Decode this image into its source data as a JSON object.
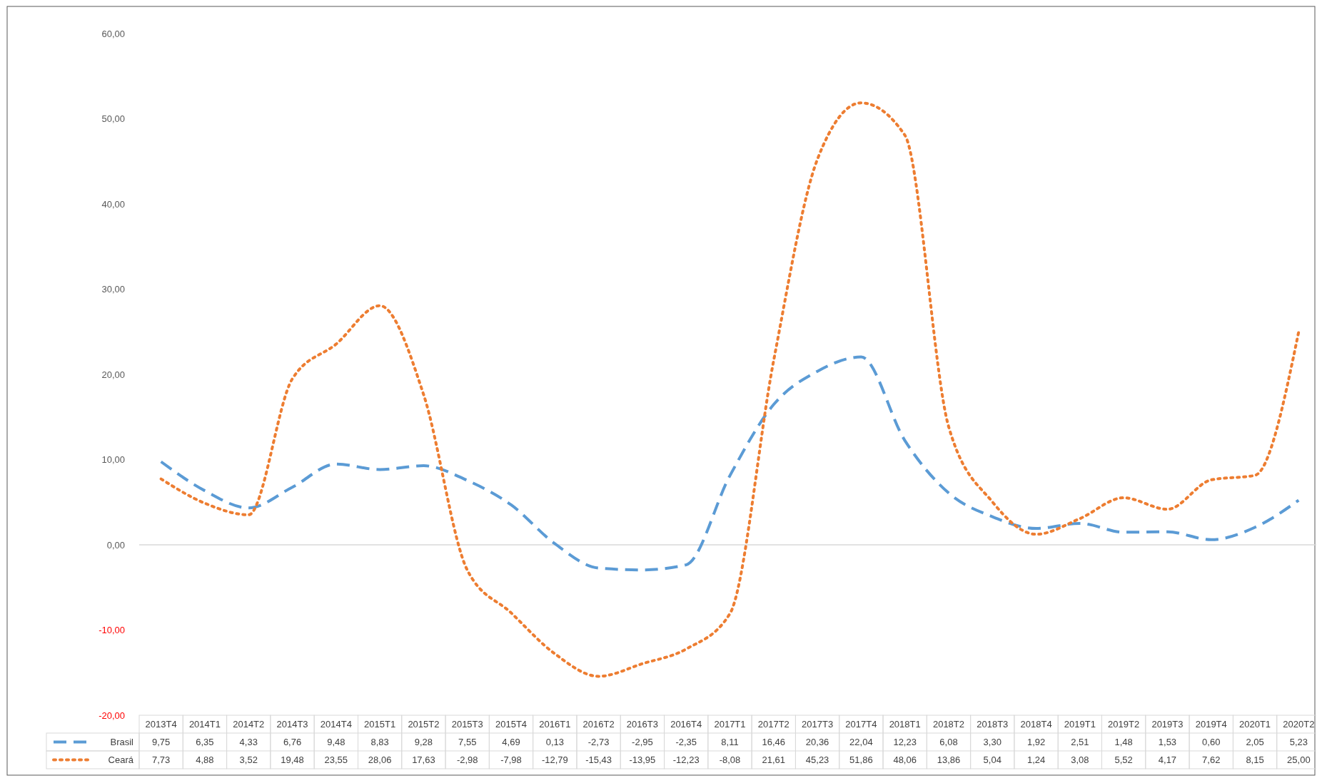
{
  "chart_data": {
    "type": "line",
    "categories": [
      "2013T4",
      "2014T1",
      "2014T2",
      "2014T3",
      "2014T4",
      "2015T1",
      "2015T2",
      "2015T3",
      "2015T4",
      "2016T1",
      "2016T2",
      "2016T3",
      "2016T4",
      "2017T1",
      "2017T2",
      "2017T3",
      "2017T4",
      "2018T1",
      "2018T2",
      "2018T3",
      "2018T4",
      "2019T1",
      "2019T2",
      "2019T3",
      "2019T4",
      "2020T1",
      "2020T2"
    ],
    "series": [
      {
        "name": "Brasil",
        "color": "#5b9bd5",
        "line_style": "dashed",
        "values": [
          9.75,
          6.35,
          4.33,
          6.76,
          9.48,
          8.83,
          9.28,
          7.55,
          4.69,
          0.13,
          -2.73,
          -2.95,
          -2.35,
          8.11,
          16.46,
          20.36,
          22.04,
          12.23,
          6.08,
          3.3,
          1.92,
          2.51,
          1.48,
          1.53,
          0.6,
          2.05,
          5.23
        ],
        "value_labels": [
          "9,75",
          "6,35",
          "4,33",
          "6,76",
          "9,48",
          "8,83",
          "9,28",
          "7,55",
          "4,69",
          "0,13",
          "-2,73",
          "-2,95",
          "-2,35",
          "8,11",
          "16,46",
          "20,36",
          "22,04",
          "12,23",
          "6,08",
          "3,30",
          "1,92",
          "2,51",
          "1,48",
          "1,53",
          "0,60",
          "2,05",
          "5,23"
        ]
      },
      {
        "name": "Ceará",
        "color": "#ed7d31",
        "line_style": "dotted",
        "values": [
          7.73,
          4.88,
          3.52,
          19.48,
          23.55,
          28.06,
          17.63,
          -2.98,
          -7.98,
          -12.79,
          -15.43,
          -13.95,
          -12.23,
          -8.08,
          21.61,
          45.23,
          51.86,
          48.06,
          13.86,
          5.04,
          1.24,
          3.08,
          5.52,
          4.17,
          7.62,
          8.15,
          25.0
        ],
        "value_labels": [
          "7,73",
          "4,88",
          "3,52",
          "19,48",
          "23,55",
          "28,06",
          "17,63",
          "-2,98",
          "-7,98",
          "-12,79",
          "-15,43",
          "-13,95",
          "-12,23",
          "-8,08",
          "21,61",
          "45,23",
          "51,86",
          "48,06",
          "13,86",
          "5,04",
          "1,24",
          "3,08",
          "5,52",
          "4,17",
          "7,62",
          "8,15",
          "25,00"
        ]
      }
    ],
    "ylim": [
      -20,
      60
    ],
    "yticks": [
      {
        "value": -20,
        "label": "-20,00"
      },
      {
        "value": -10,
        "label": "-10,00"
      },
      {
        "value": 0,
        "label": "0,00"
      },
      {
        "value": 10,
        "label": "10,00"
      },
      {
        "value": 20,
        "label": "20,00"
      },
      {
        "value": 30,
        "label": "30,00"
      },
      {
        "value": 40,
        "label": "40,00"
      },
      {
        "value": 50,
        "label": "50,00"
      },
      {
        "value": 60,
        "label": "60,00"
      }
    ],
    "legend": "bottom"
  }
}
